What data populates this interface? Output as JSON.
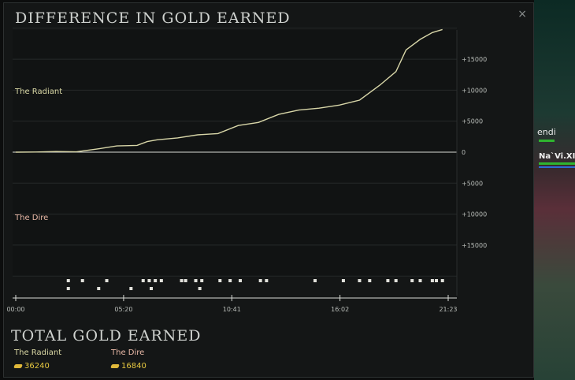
{
  "panel": {
    "title": "DIFFERENCE IN GOLD EARNED",
    "close_label": "×"
  },
  "chart_data": {
    "type": "line",
    "team_labels": {
      "top": "The Radiant",
      "bottom": "The Dire"
    },
    "y_ticks": [
      {
        "value": 15000,
        "label": "+15000"
      },
      {
        "value": 10000,
        "label": "+10000"
      },
      {
        "value": 5000,
        "label": "+5000"
      },
      {
        "value": 0,
        "label": "0"
      },
      {
        "value": -5000,
        "label": "+5000"
      },
      {
        "value": -10000,
        "label": "+10000"
      },
      {
        "value": -15000,
        "label": "+15000"
      }
    ],
    "ylim": [
      -20000,
      20000
    ],
    "x_ticks": [
      {
        "t": 0,
        "label": "00:00"
      },
      {
        "t": 5.333,
        "label": "05:20"
      },
      {
        "t": 10.683,
        "label": "10:41"
      },
      {
        "t": 16.033,
        "label": "16:02"
      },
      {
        "t": 21.383,
        "label": "21:23"
      }
    ],
    "xlim": [
      0,
      21.383
    ],
    "series": [
      {
        "color": "#d8d6a8",
        "points": [
          [
            0,
            0
          ],
          [
            1,
            30
          ],
          [
            2,
            100
          ],
          [
            3,
            50
          ],
          [
            4,
            500
          ],
          [
            5,
            1000
          ],
          [
            6,
            1100
          ],
          [
            6.5,
            1700
          ],
          [
            7,
            2000
          ],
          [
            8,
            2300
          ],
          [
            9,
            2800
          ],
          [
            10,
            3000
          ],
          [
            11,
            4300
          ],
          [
            12,
            4800
          ],
          [
            13,
            6100
          ],
          [
            14,
            6800
          ],
          [
            15,
            7100
          ],
          [
            16,
            7600
          ],
          [
            17,
            8400
          ],
          [
            18,
            10800
          ],
          [
            18.8,
            13000
          ],
          [
            19.3,
            16500
          ],
          [
            20,
            18200
          ],
          [
            20.6,
            19300
          ],
          [
            21.1,
            19800
          ]
        ]
      }
    ],
    "events_row1": [
      2.6,
      3.3,
      4.5,
      6.3,
      6.6,
      6.9,
      7.2,
      8.2,
      8.4,
      8.9,
      9.2,
      10.1,
      10.6,
      11.1,
      12.1,
      12.4,
      14.8,
      16.2,
      17,
      17.5,
      18.4,
      18.8,
      19.6,
      20,
      20.6,
      20.8,
      21.1
    ],
    "events_row2": [
      2.6,
      4.1,
      5.7,
      6.7,
      9.1
    ]
  },
  "totals": {
    "title": "TOTAL GOLD EARNED",
    "radiant": {
      "name": "The Radiant",
      "value": "36240"
    },
    "dire": {
      "name": "The Dire",
      "value": "16840"
    }
  },
  "side": {
    "name_fragment": "endi",
    "tag_fragment": "Na`Vi.XI"
  }
}
